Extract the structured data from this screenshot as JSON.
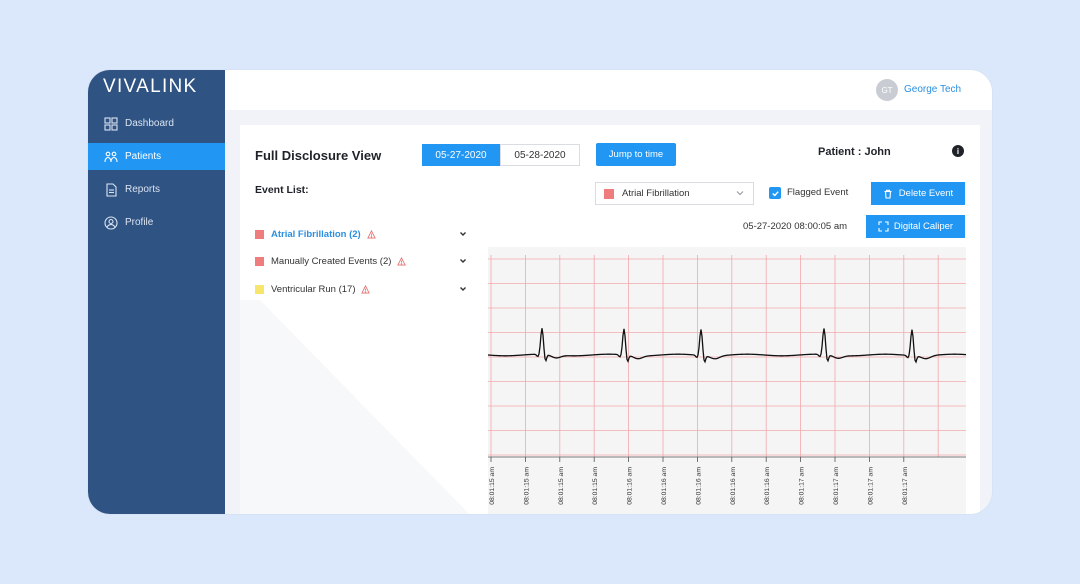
{
  "brand": {
    "logo": "VIVALINK"
  },
  "sidebar": {
    "items": [
      {
        "label": "Dashboard",
        "icon": "dashboard-icon",
        "active": false
      },
      {
        "label": "Patients",
        "icon": "patients-icon",
        "active": true
      },
      {
        "label": "Reports",
        "icon": "reports-icon",
        "active": false
      },
      {
        "label": "Profile",
        "icon": "profile-icon",
        "active": false
      }
    ]
  },
  "header": {
    "avatar_initials": "GT",
    "username": "George Tech"
  },
  "main": {
    "title": "Full Disclosure View",
    "dates": [
      "05-27-2020",
      "05-28-2020"
    ],
    "selected_date": "05-27-2020",
    "jump_label": "Jump to time",
    "patient_label": "Patient : John",
    "event_list_label": "Event List:",
    "event_filter": {
      "value": "Atrial Fibrillation",
      "color": "#ef7d7d"
    },
    "flagged_label": "Flagged Event",
    "flagged_checked": true,
    "delete_label": "Delete Event",
    "timestamp": "05-27-2020 08:00:05 am",
    "caliper_label": "Digital Caliper",
    "events": [
      {
        "label": "Atrial Fibrillation (2)",
        "color": "#ef7d7d",
        "active": true
      },
      {
        "label": "Manually Created Events (2)",
        "color": "#ef7d7d",
        "active": false
      },
      {
        "label": "Ventricular Run (17)",
        "color": "#f7e66b",
        "active": false
      }
    ]
  },
  "ecg": {
    "grid_color": "#f2a9ad",
    "background": "#f5f5f5",
    "time_labels": [
      "08:01:15 am",
      "08:01:15 am",
      "08:01:15 am",
      "08:01:15 am",
      "08:01:16 am",
      "08:01:16 am",
      "08:01:16 am",
      "08:01:16 am",
      "08:01:16 am",
      "08:01:17 am",
      "08:01:17 am",
      "08:01:17 am",
      "08:01:17 am"
    ]
  },
  "colors": {
    "sidebar": "#2f5382",
    "accent": "#2196f3"
  }
}
